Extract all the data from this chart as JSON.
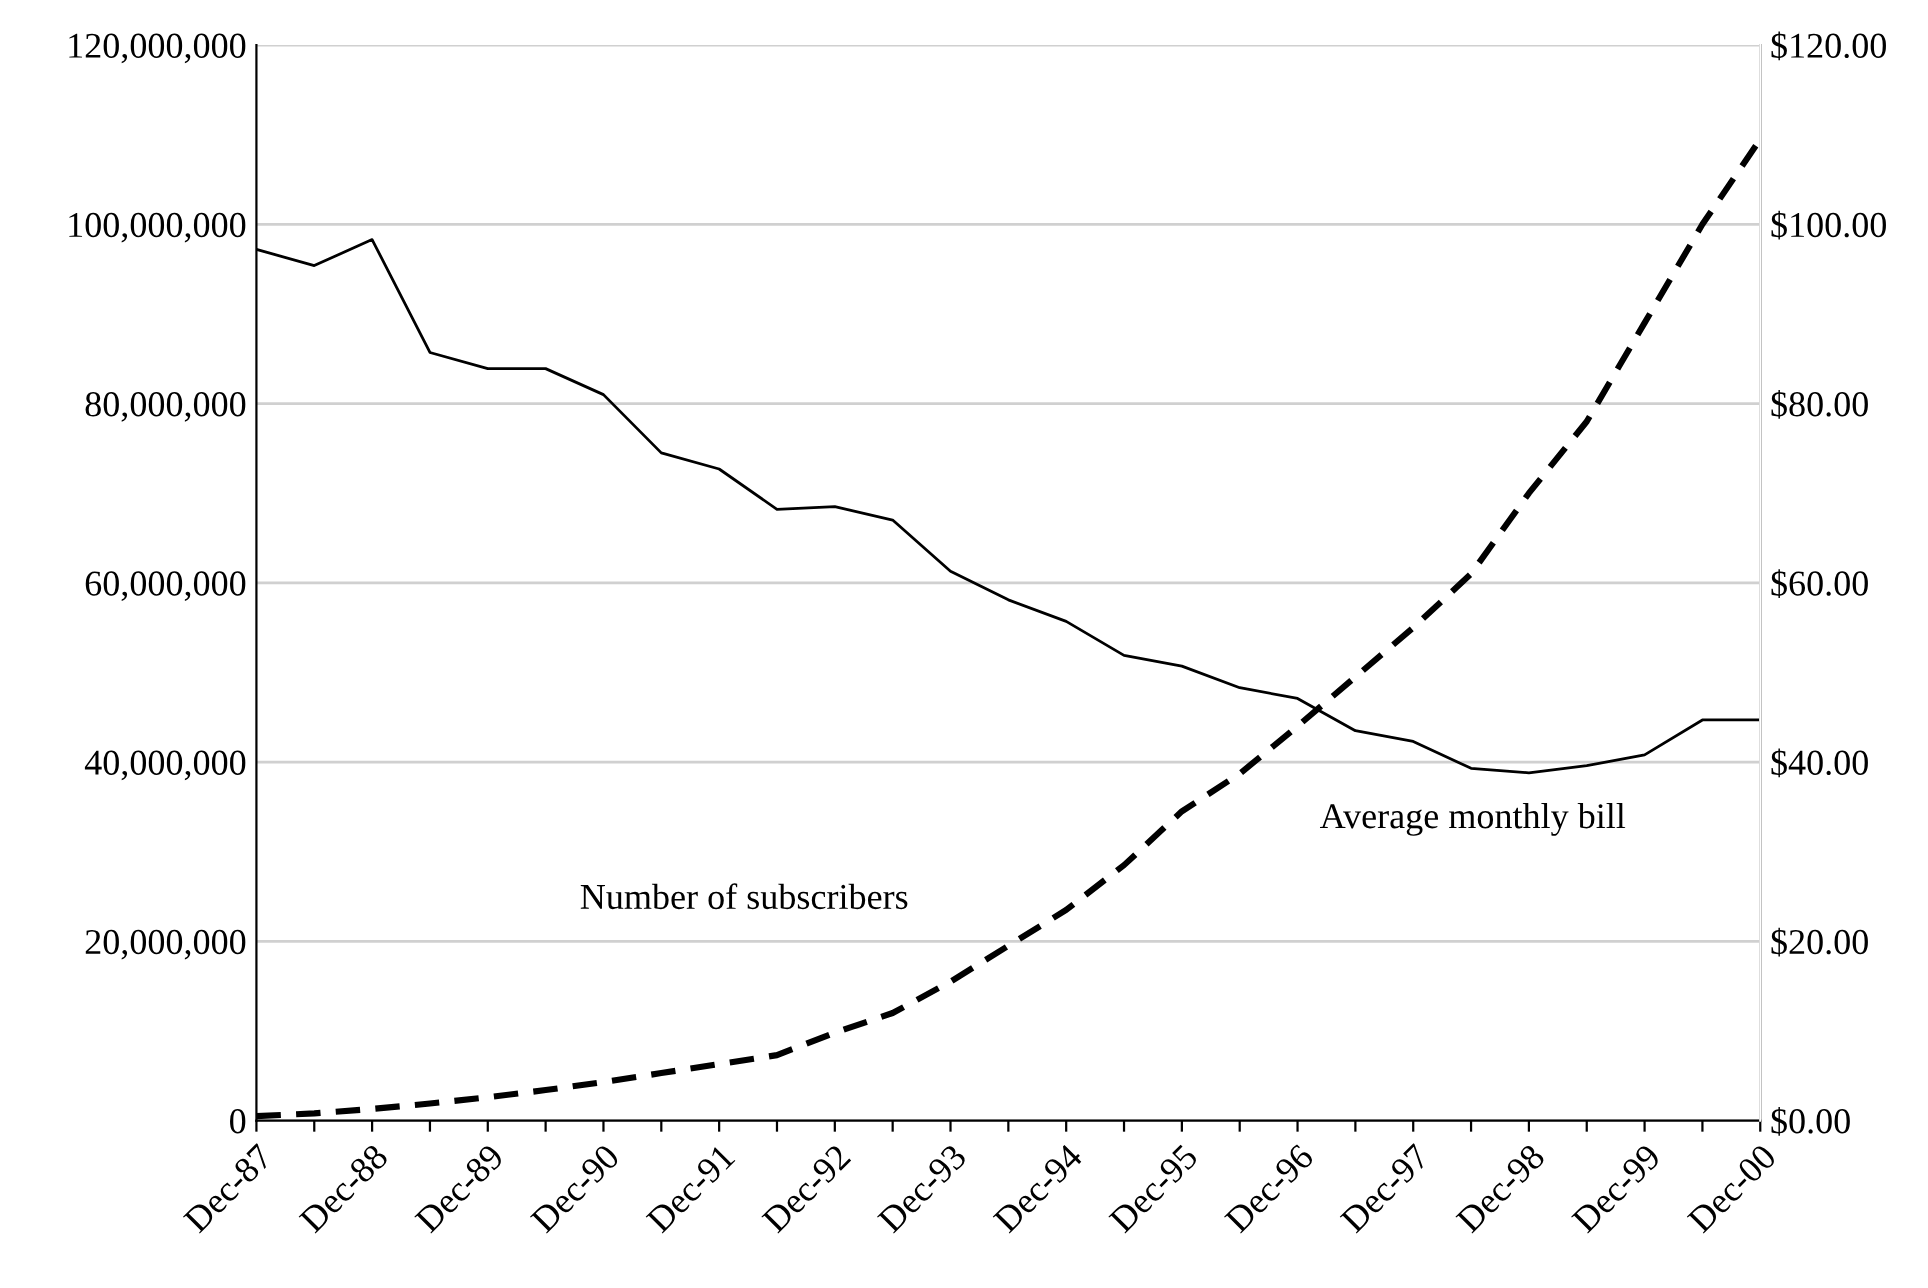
{
  "chart_data": {
    "type": "line",
    "categories": [
      "Dec-87",
      null,
      "Dec-88",
      null,
      "Dec-89",
      null,
      "Dec-90",
      null,
      "Dec-91",
      null,
      "Dec-92",
      null,
      "Dec-93",
      null,
      "Dec-94",
      null,
      "Dec-95",
      null,
      "Dec-96",
      null,
      "Dec-97",
      null,
      "Dec-98",
      null,
      "Dec-99",
      null,
      "Dec-00"
    ],
    "series": [
      {
        "color": "#000000",
        "line_style": "solid",
        "values": [
          97200000,
          95400000,
          98300000,
          85700000,
          83900000,
          83900000,
          81000000,
          74500000,
          72700000,
          68200000,
          68500000,
          67000000,
          61300000,
          58100000,
          55700000,
          51900000,
          50700000,
          48300000,
          47100000,
          43500000,
          42300000,
          39300000,
          38800000,
          39600000,
          40800000,
          44700000,
          44700000
        ]
      },
      {
        "color": "#000000",
        "line_style": "dashed",
        "axis": "y2",
        "values": [
          0.5,
          0.8,
          1.3,
          1.9,
          2.6,
          3.4,
          4.3,
          5.3,
          6.3,
          7.3,
          9.8,
          12.0,
          15.5,
          19.5,
          23.5,
          28.5,
          34.5,
          38.7,
          44.0,
          49.5,
          55.0,
          61.0,
          70.0,
          78.0,
          89.0,
          100.0,
          109.5
        ]
      }
    ],
    "ylim": [
      0,
      120000000
    ],
    "yticks": [
      {
        "value": 0,
        "label": "0"
      },
      {
        "value": 20000000,
        "label": "20,000,000"
      },
      {
        "value": 40000000,
        "label": "40,000,000"
      },
      {
        "value": 60000000,
        "label": "60,000,000"
      },
      {
        "value": 80000000,
        "label": "80,000,000"
      },
      {
        "value": 100000000,
        "label": "100,000,000"
      },
      {
        "value": 120000000,
        "label": "120,000,000"
      }
    ],
    "y2lim": [
      0,
      120
    ],
    "y2ticks": [
      {
        "value": 0,
        "label": "$0.00"
      },
      {
        "value": 20,
        "label": "$20.00"
      },
      {
        "value": 40,
        "label": "$40.00"
      },
      {
        "value": 60,
        "label": "$60.00"
      },
      {
        "value": 80,
        "label": "$80.00"
      },
      {
        "value": 100,
        "label": "$100.00"
      },
      {
        "value": 120,
        "label": "$120.00"
      }
    ],
    "annotations": [
      "Number of subscribers",
      "Average monthly bill"
    ],
    "grid": "y",
    "legend": false
  }
}
